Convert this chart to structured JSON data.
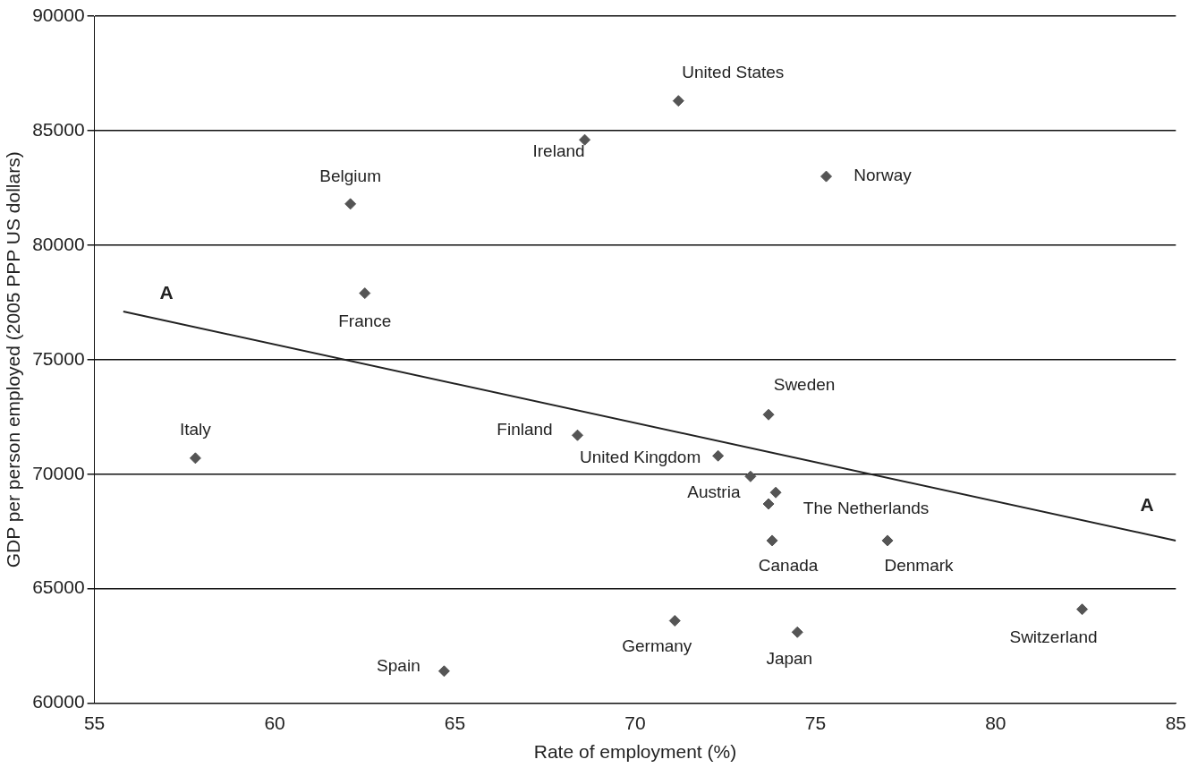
{
  "chart_data": {
    "type": "scatter",
    "xlabel": "Rate of employment (%)",
    "ylabel": "GDP per person employed (2005 PPP US dollars)",
    "xlim": [
      55,
      85
    ],
    "xticks": [
      55,
      60,
      65,
      70,
      75,
      80,
      85
    ],
    "ylim": [
      60000,
      90000
    ],
    "yticks": [
      60000,
      65000,
      70000,
      75000,
      80000,
      85000,
      90000
    ],
    "grid": "y",
    "legend": false,
    "marker": "diamond",
    "series": [
      {
        "color": "#555555",
        "x": [
          71.2,
          68.6,
          75.3,
          62.1,
          62.5,
          57.8,
          68.4,
          73.7,
          72.3,
          73.2,
          73.9,
          73.7,
          73.8,
          77.0,
          82.4,
          71.1,
          74.5,
          64.7
        ],
        "values": [
          86300,
          84600,
          83000,
          81800,
          77900,
          70700,
          71700,
          72600,
          70800,
          69900,
          69200,
          68700,
          67100,
          67100,
          64100,
          63600,
          63100,
          61400
        ]
      },
      {
        "type": "line",
        "marker": "none",
        "color": "#222222",
        "x": [
          55.8,
          85
        ],
        "values": [
          77100,
          67100
        ]
      }
    ],
    "annotations": [
      {
        "text": "United States",
        "x": 71.2,
        "y": 86300
      },
      {
        "text": "Ireland",
        "x": 68.6,
        "y": 84600
      },
      {
        "text": "Norway",
        "x": 75.3,
        "y": 83000
      },
      {
        "text": "Belgium",
        "x": 62.1,
        "y": 81800
      },
      {
        "text": "France",
        "x": 62.5,
        "y": 77900
      },
      {
        "text": "Italy",
        "x": 57.8,
        "y": 70700
      },
      {
        "text": "Finland",
        "x": 68.4,
        "y": 71700
      },
      {
        "text": "United Kingdom",
        "x": 72.3,
        "y": 70800
      },
      {
        "text": "Sweden",
        "x": 73.7,
        "y": 72600
      },
      {
        "text": "Austria",
        "x": 73.2,
        "y": 69900
      },
      {
        "text": "The Netherlands",
        "x": 73.9,
        "y": 69200
      },
      {
        "text": "Canada",
        "x": 73.8,
        "y": 67100
      },
      {
        "text": "Denmark",
        "x": 77.0,
        "y": 67100
      },
      {
        "text": "Switzerland",
        "x": 82.4,
        "y": 64100
      },
      {
        "text": "Germany",
        "x": 71.1,
        "y": 63600
      },
      {
        "text": "Japan",
        "x": 74.5,
        "y": 63100
      },
      {
        "text": "Spain",
        "x": 64.7,
        "y": 61400
      },
      {
        "text": "A",
        "x": 57.0,
        "y": 76690
      },
      {
        "text": "A",
        "x": 84.2,
        "y": 67370
      }
    ]
  }
}
